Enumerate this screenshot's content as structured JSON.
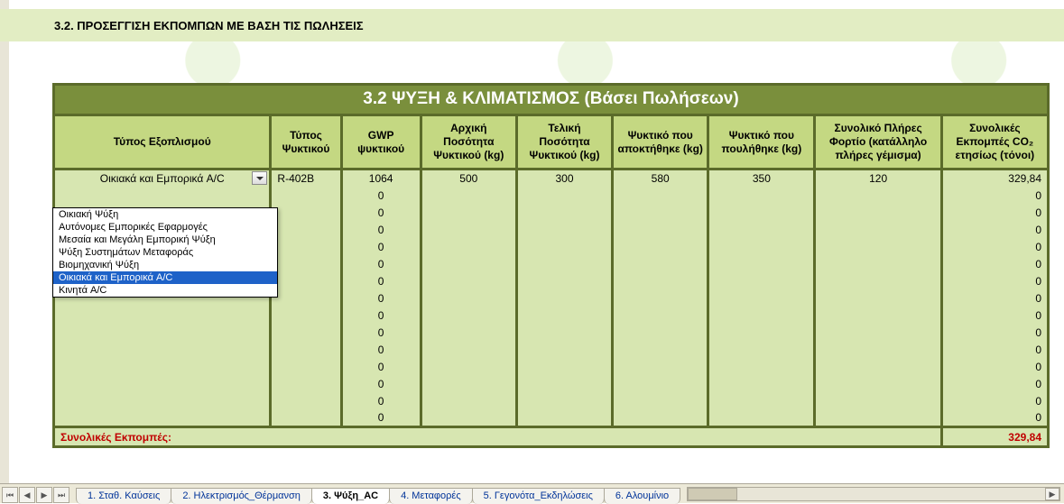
{
  "section_title": "3.2. ΠΡΟΣΕΓΓΙΣΗ ΕΚΠΟΜΠΩΝ ΜΕ ΒΑΣΗ ΤΙΣ ΠΩΛΗΣΕΙΣ",
  "table_title": "3.2 ΨΥΞΗ & ΚΛΙΜΑΤΙΣΜΟΣ (Βάσει Πωλήσεων)",
  "columns": {
    "equipment": "Τύπος Εξοπλισμού",
    "refrigerant_type": "Τύπος Ψυκτικού",
    "gwp": "GWP ψυκτικού",
    "initial_qty": "Αρχική Ποσότητα Ψυκτικού (kg)",
    "final_qty": "Τελική Ποσότητα Ψυκτικού (kg)",
    "acquired": "Ψυκτικό που αποκτήθηκε (kg)",
    "sold": "Ψυκτικό που πουλήθηκε (kg)",
    "full_load": "Συνολικό Πλήρες Φορτίο (κατάλληλο πλήρες γέμισμα)",
    "total_co2": "Συνολικές Εκπομπές CO₂ ετησίως (τόνοι)"
  },
  "col_widths": {
    "equipment": 240,
    "refrigerant_type": 78,
    "gwp": 88,
    "initial_qty": 106,
    "final_qty": 106,
    "acquired": 106,
    "sold": 118,
    "full_load": 140,
    "total_co2": 118
  },
  "rows": [
    {
      "equipment": "Οικιακά και Εμπορικά A/C",
      "refrigerant_type": "R-402B",
      "gwp": "1064",
      "initial_qty": "500",
      "final_qty": "300",
      "acquired": "580",
      "sold": "350",
      "full_load": "120",
      "total_co2": "329,84"
    },
    {
      "gwp": "0",
      "total_co2": "0"
    },
    {
      "gwp": "0",
      "total_co2": "0"
    },
    {
      "gwp": "0",
      "total_co2": "0"
    },
    {
      "gwp": "0",
      "total_co2": "0"
    },
    {
      "gwp": "0",
      "total_co2": "0"
    },
    {
      "gwp": "0",
      "total_co2": "0"
    },
    {
      "gwp": "0",
      "total_co2": "0"
    },
    {
      "gwp": "0",
      "total_co2": "0"
    },
    {
      "gwp": "0",
      "total_co2": "0"
    },
    {
      "gwp": "0",
      "total_co2": "0"
    },
    {
      "gwp": "0",
      "total_co2": "0"
    },
    {
      "gwp": "0",
      "total_co2": "0"
    },
    {
      "gwp": "0",
      "total_co2": "0"
    },
    {
      "gwp": "0",
      "total_co2": "0"
    }
  ],
  "totals": {
    "label": "Συνολικές Εκπομπές:",
    "value": "329,84"
  },
  "dropdown": {
    "options": [
      "Οικιακή Ψύξη",
      "Αυτόνομες Εμπορικές Εφαρμογές",
      "Μεσαία και Μεγάλη Εμπορική Ψύξη",
      "Ψύξη Συστημάτων Μεταφοράς",
      "Βιομηχανική Ψύξη",
      "Οικιακά και Εμπορικά A/C",
      "Κινητά A/C"
    ],
    "selected_index": 5
  },
  "tabs": {
    "items": [
      "1. Σταθ. Καύσεις",
      "2. Ηλεκτρισμός_Θέρμανση",
      "3. Ψύξη_AC",
      "4. Μεταφορές",
      "5. Γεγονότα_Εκδηλώσεις",
      "6. Αλουμίνιο"
    ],
    "active_index": 2
  },
  "colors": {
    "band_bg": "#e2edc3",
    "title_bg": "#7a8f3c",
    "title_border": "#5b6b2a",
    "header_bg": "#c4d882",
    "cell_bg": "#d7e6b1",
    "totals_text": "#c00000",
    "dropdown_sel": "#1e62c8"
  }
}
